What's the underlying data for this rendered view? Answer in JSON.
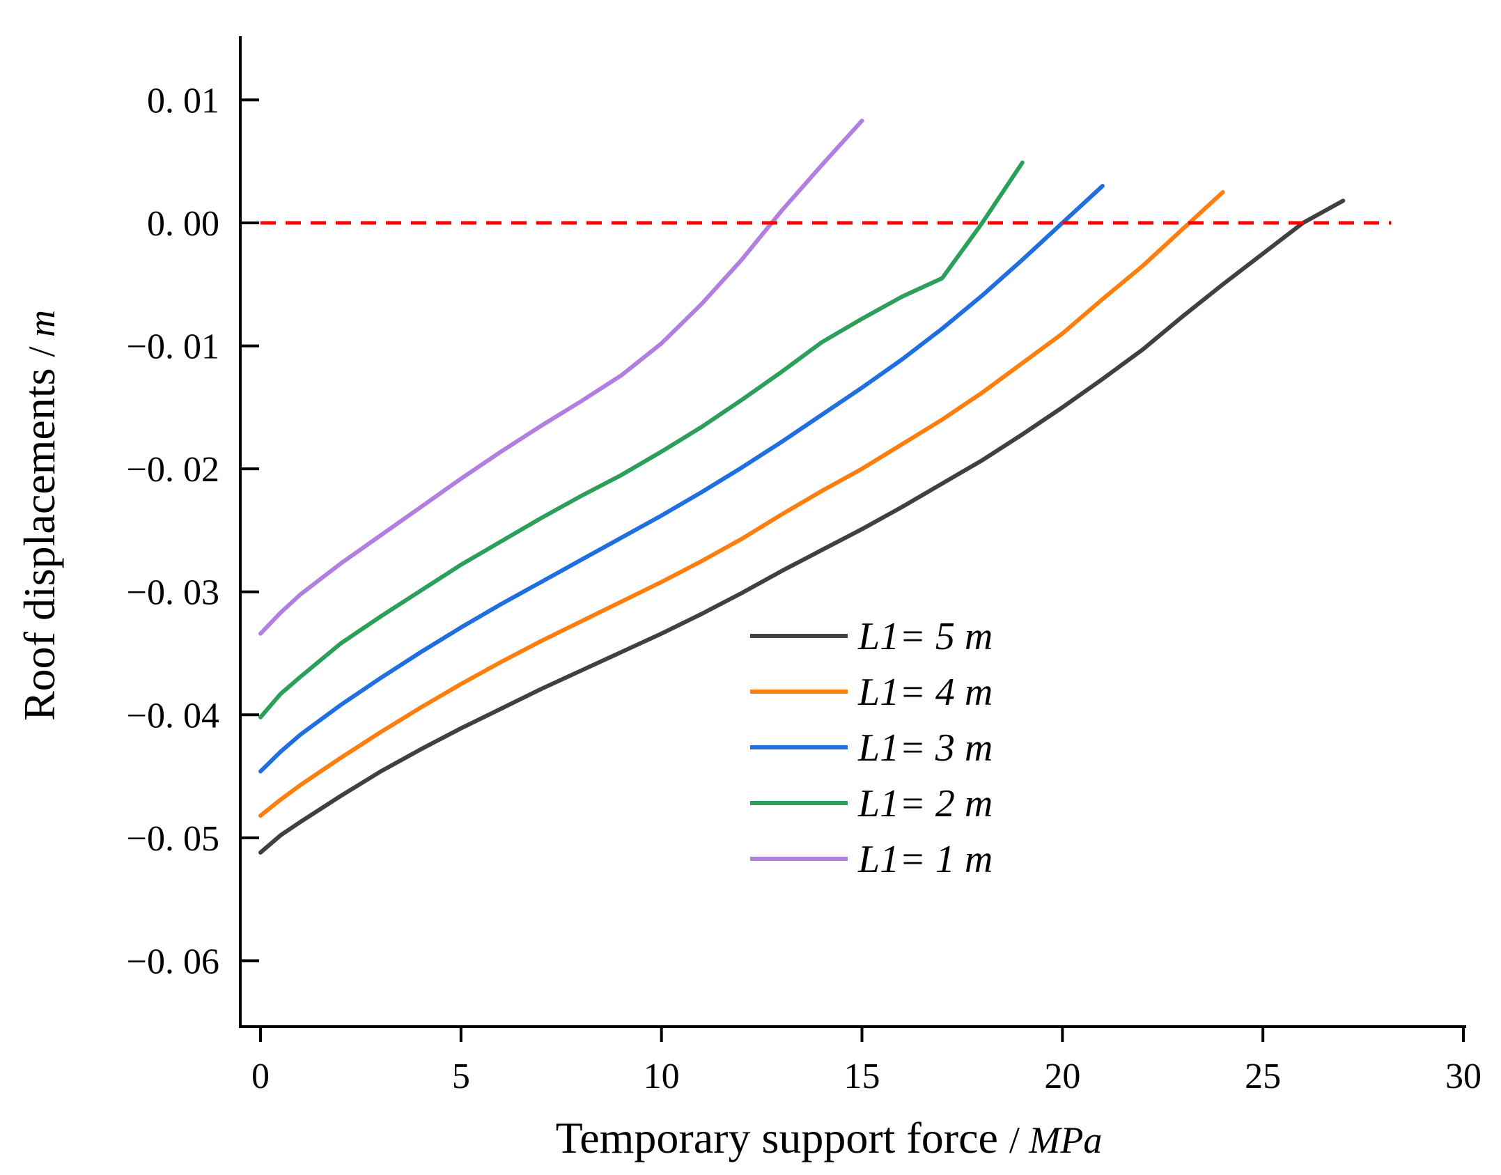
{
  "chart_data": {
    "type": "line",
    "title": "",
    "xlabel": "Temporary support force",
    "xlabel_unit": "MPa",
    "ylabel": "Roof displacements",
    "ylabel_unit": "m",
    "xlim": [
      -0.5,
      30
    ],
    "ylim": [
      -0.065,
      0.015
    ],
    "x_ticks": [
      0,
      5,
      10,
      15,
      20,
      25,
      30
    ],
    "x_tick_labels": [
      "0",
      "5",
      "10",
      "15",
      "20",
      "25",
      "30"
    ],
    "y_ticks": [
      0.01,
      0.0,
      -0.01,
      -0.02,
      -0.03,
      -0.04,
      -0.05,
      -0.06
    ],
    "y_tick_labels": [
      "0. 01",
      "0. 00",
      "−0. 01",
      "−0. 02",
      "−0. 03",
      "−0. 04",
      "−0. 05",
      "−0. 06"
    ],
    "grid": false,
    "legend_position": "center-right",
    "reference_line": {
      "y": 0.0,
      "x_range": [
        0,
        28.2
      ],
      "color": "#ff0000",
      "style": "dashed"
    },
    "series": [
      {
        "name": "L1= 5 m",
        "color": "#404040",
        "x": [
          0,
          0.5,
          1,
          2,
          3,
          4,
          5,
          6,
          7,
          8,
          9,
          10,
          11,
          12,
          13,
          14,
          15,
          16,
          17,
          18,
          19,
          20,
          21,
          22,
          23,
          24,
          25,
          26,
          27
        ],
        "y": [
          -0.0512,
          -0.0498,
          -0.0487,
          -0.0466,
          -0.0446,
          -0.0428,
          -0.0411,
          -0.0395,
          -0.0379,
          -0.0364,
          -0.0349,
          -0.0334,
          -0.0318,
          -0.0301,
          -0.0283,
          -0.0266,
          -0.0249,
          -0.0231,
          -0.0212,
          -0.0193,
          -0.0172,
          -0.015,
          -0.0127,
          -0.0103,
          -0.0076,
          -0.005,
          -0.0025,
          0.0,
          0.0018
        ]
      },
      {
        "name": "L1= 4 m",
        "color": "#ff7f0e",
        "x": [
          0,
          0.5,
          1,
          2,
          3,
          4,
          5,
          6,
          7,
          8,
          9,
          10,
          11,
          12,
          13,
          14,
          15,
          16,
          17,
          18,
          19,
          20,
          21,
          22,
          23,
          24
        ],
        "y": [
          -0.0482,
          -0.0469,
          -0.0457,
          -0.0435,
          -0.0414,
          -0.0394,
          -0.0375,
          -0.0357,
          -0.034,
          -0.0324,
          -0.0308,
          -0.0292,
          -0.0275,
          -0.0257,
          -0.0237,
          -0.0218,
          -0.02,
          -0.018,
          -0.016,
          -0.0138,
          -0.0114,
          -0.009,
          -0.0062,
          -0.0035,
          -0.0005,
          0.0025
        ]
      },
      {
        "name": "L1= 3 m",
        "color": "#1f6fe0",
        "x": [
          0,
          0.5,
          1,
          2,
          3,
          4,
          5,
          6,
          7,
          8,
          9,
          10,
          11,
          12,
          13,
          14,
          15,
          16,
          17,
          18,
          19,
          20,
          21
        ],
        "y": [
          -0.0446,
          -0.043,
          -0.0416,
          -0.0392,
          -0.037,
          -0.0349,
          -0.0329,
          -0.031,
          -0.0292,
          -0.0274,
          -0.0256,
          -0.0238,
          -0.0219,
          -0.0199,
          -0.0178,
          -0.0156,
          -0.0134,
          -0.0111,
          -0.0086,
          -0.0059,
          -0.003,
          0.0,
          0.003
        ]
      },
      {
        "name": "L1= 2 m",
        "color": "#2ca05a",
        "x": [
          0,
          0.5,
          1,
          2,
          3,
          4,
          5,
          6,
          7,
          8,
          9,
          10,
          11,
          12,
          13,
          14,
          15,
          16,
          17,
          18,
          19
        ],
        "y": [
          -0.0402,
          -0.0383,
          -0.0369,
          -0.0342,
          -0.032,
          -0.0299,
          -0.0278,
          -0.0259,
          -0.024,
          -0.0222,
          -0.0205,
          -0.0186,
          -0.0166,
          -0.0144,
          -0.0121,
          -0.0097,
          -0.0078,
          -0.006,
          -0.0045,
          0.0,
          0.0049
        ]
      },
      {
        "name": "L1= 1 m",
        "color": "#b07fe0",
        "x": [
          0,
          0.5,
          1,
          2,
          3,
          4,
          5,
          6,
          7,
          8,
          9,
          10,
          11,
          12,
          13,
          14,
          15
        ],
        "y": [
          -0.0334,
          -0.0317,
          -0.0302,
          -0.0277,
          -0.0254,
          -0.0231,
          -0.0208,
          -0.0186,
          -0.0165,
          -0.0145,
          -0.0124,
          -0.0098,
          -0.0066,
          -0.003,
          0.001,
          0.0047,
          0.0083
        ]
      }
    ]
  }
}
